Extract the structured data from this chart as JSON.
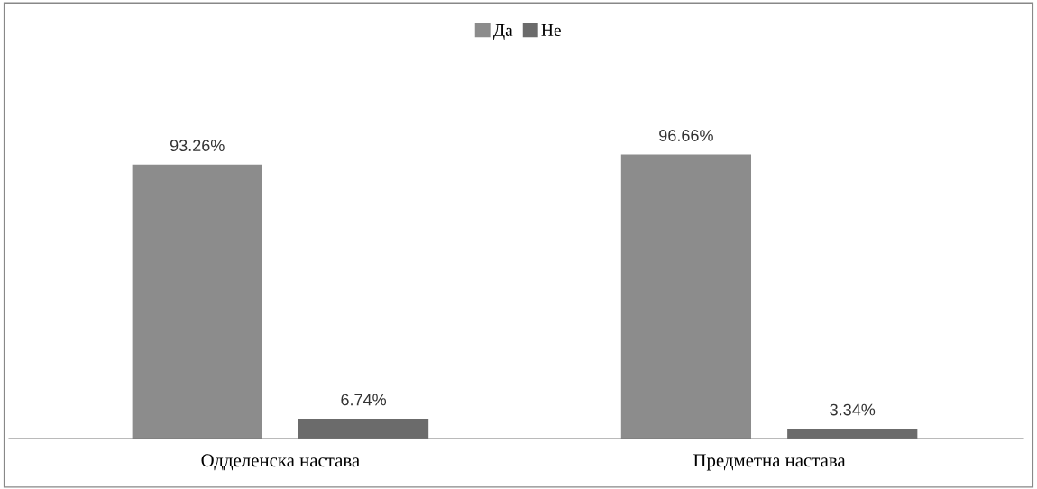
{
  "chart_data": {
    "type": "bar",
    "categories": [
      "Одделенска настава",
      "Предметна настава"
    ],
    "series": [
      {
        "name": "Да",
        "color": "#8c8c8c",
        "values": [
          93.26,
          96.66
        ],
        "value_labels": [
          "93.26%",
          "96.66%"
        ]
      },
      {
        "name": "Не",
        "color": "#6b6b6b",
        "values": [
          6.74,
          3.34
        ],
        "value_labels": [
          "6.74%",
          "3.34%"
        ]
      }
    ],
    "legend": "top",
    "grid": false
  }
}
